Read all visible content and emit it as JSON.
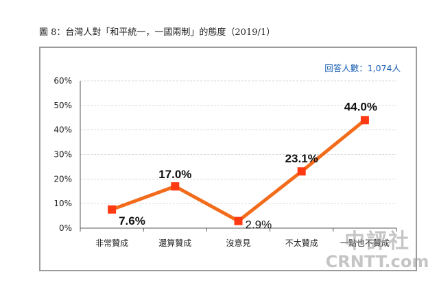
{
  "figure_title": "圖 8：台灣人對「和平統一，一國兩制」的態度（2019/1）",
  "respondents_label": "回答人數：1,074人",
  "watermark": {
    "chinese": "中評社",
    "latin": "CRNTT.com"
  },
  "colors": {
    "line": "#f36c1c",
    "marker": "#ff3a12",
    "grid": "#d9d9d9",
    "axis": "#595959"
  },
  "chart_data": {
    "type": "line",
    "categories": [
      "非常贊成",
      "還算贊成",
      "沒意見",
      "不太贊成",
      "一點也不贊成"
    ],
    "values": [
      7.6,
      17.0,
      2.9,
      23.1,
      44.0
    ],
    "value_labels": [
      "7.6%",
      "17.0%",
      "2.9%",
      "23.1%",
      "44.0%"
    ],
    "label_bold": [
      true,
      true,
      false,
      true,
      true
    ],
    "y_ticks": [
      "0%",
      "10%",
      "20%",
      "30%",
      "40%",
      "50%",
      "60%"
    ],
    "ylim": [
      0,
      60
    ],
    "grid": true,
    "legend": "none"
  }
}
